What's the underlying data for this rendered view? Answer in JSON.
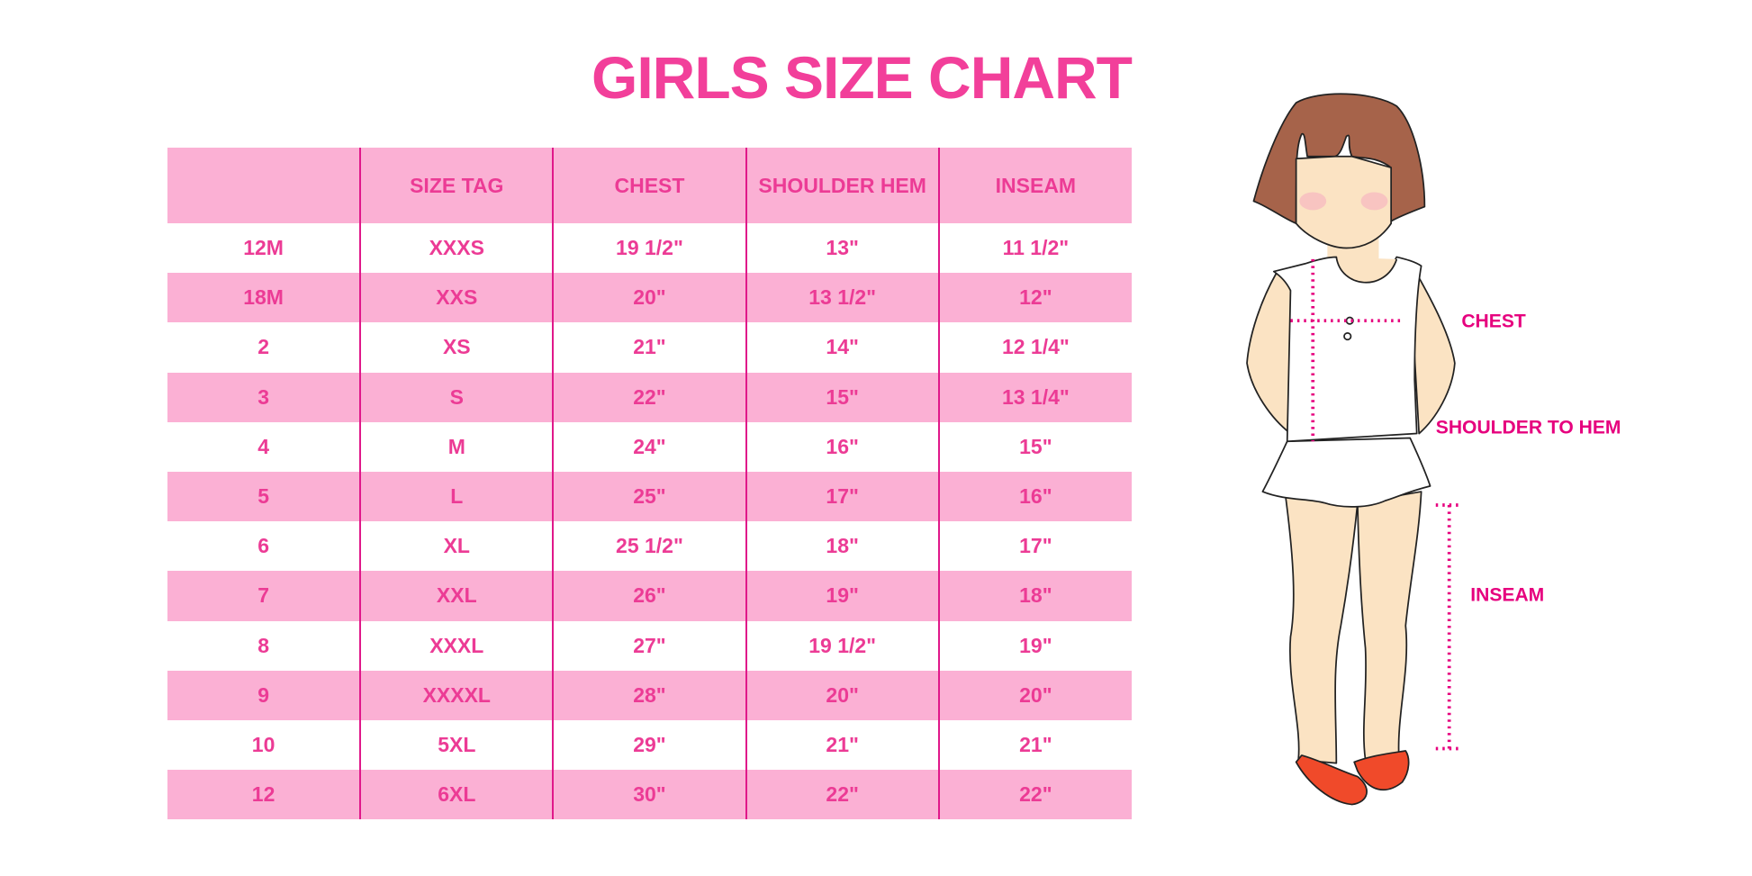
{
  "title": "GIRLS SIZE CHART",
  "table": {
    "headers": [
      "",
      "SIZE TAG",
      "CHEST",
      "SHOULDER HEM",
      "INSEAM"
    ],
    "rows": [
      [
        "12M",
        "XXXS",
        "19 1/2\"",
        "13\"",
        "11 1/2\""
      ],
      [
        "18M",
        "XXS",
        "20\"",
        "13 1/2\"",
        "12\""
      ],
      [
        "2",
        "XS",
        "21\"",
        "14\"",
        "12 1/4\""
      ],
      [
        "3",
        "S",
        "22\"",
        "15\"",
        "13 1/4\""
      ],
      [
        "4",
        "M",
        "24\"",
        "16\"",
        "15\""
      ],
      [
        "5",
        "L",
        "25\"",
        "17\"",
        "16\""
      ],
      [
        "6",
        "XL",
        "25 1/2\"",
        "18\"",
        "17\""
      ],
      [
        "7",
        "XXL",
        "26\"",
        "19\"",
        "18\""
      ],
      [
        "8",
        "XXXL",
        "27\"",
        "19 1/2\"",
        "19\""
      ],
      [
        "9",
        "XXXXL",
        "28\"",
        "20\"",
        "20\""
      ],
      [
        "10",
        "5XL",
        "29\"",
        "21\"",
        "21\""
      ],
      [
        "12",
        "6XL",
        "30\"",
        "22\"",
        "22\""
      ]
    ]
  },
  "figure": {
    "labels": {
      "chest": "CHEST",
      "shoulder_to_hem": "SHOULDER TO HEM",
      "inseam": "INSEAM"
    }
  },
  "colors": {
    "accent": "#f23f9a",
    "header_bg": "#fbb0d4",
    "divider": "#e0188a",
    "label": "#e6007e"
  }
}
